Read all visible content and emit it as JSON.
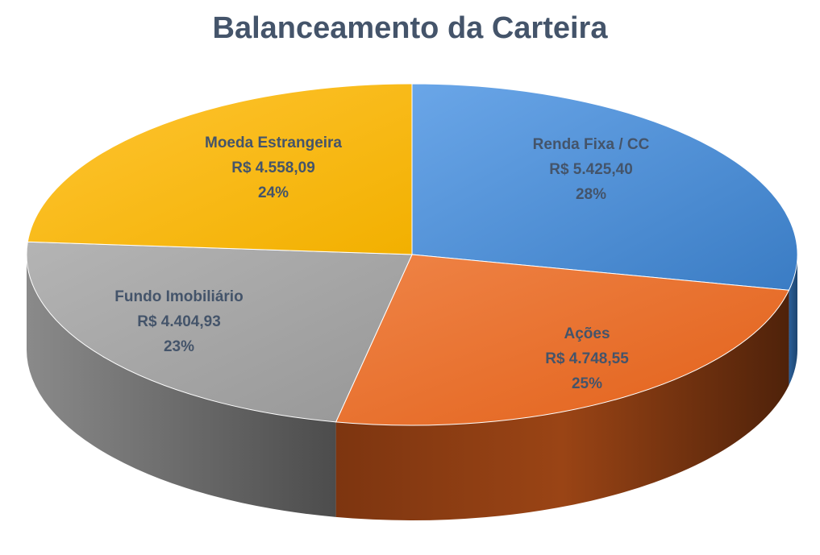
{
  "chart_data": {
    "type": "pie",
    "title": "Balanceamento da Carteira",
    "three_d": true,
    "legend": "none",
    "slices": [
      {
        "name": "Renda Fixa / CC",
        "value_label": "R$ 5.425,40",
        "value": 5425.4,
        "percent_label": "28%",
        "color": "#4a8fd8",
        "side_color": "#2b5f99"
      },
      {
        "name": "Ações",
        "value_label": "R$ 4.748,55",
        "value": 4748.55,
        "percent_label": "25%",
        "color": "#ec7431",
        "side_color": "#8a3a12"
      },
      {
        "name": "Fundo Imobiliário",
        "value_label": "R$ 4.404,93",
        "value": 4404.93,
        "percent_label": "23%",
        "color": "#a6a6a6",
        "side_color": "#6b6b6b"
      },
      {
        "name": "Moeda Estrangeira",
        "value_label": "R$ 4.558,09",
        "value": 4558.09,
        "percent_label": "24%",
        "color": "#fbbd1b",
        "side_color": "#b07f00"
      }
    ]
  }
}
